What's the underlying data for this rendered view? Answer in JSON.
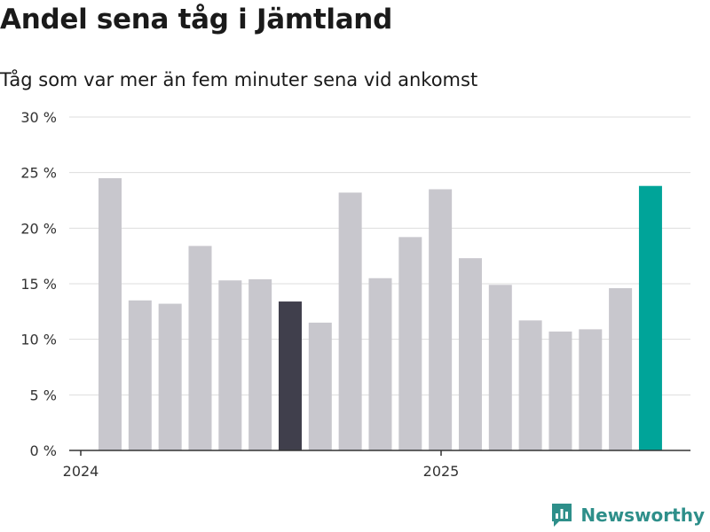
{
  "chart_data": {
    "type": "bar",
    "title": "Andel sena tåg i Jämtland",
    "subtitle": "Tåg som var mer än fem minuter sena vid ankomst",
    "xlabel": "",
    "ylabel": "",
    "ylim": [
      0,
      30
    ],
    "yticks": [
      0,
      5,
      10,
      15,
      20,
      25,
      30
    ],
    "ytick_labels": [
      "0 %",
      "5 %",
      "10 %",
      "15 %",
      "20 %",
      "25 %",
      "30 %"
    ],
    "x_tick_labels": [
      {
        "label": "2024",
        "index": 0
      },
      {
        "label": "2025",
        "index": 12
      }
    ],
    "grid": true,
    "values": [
      24.5,
      13.5,
      13.2,
      18.4,
      15.3,
      15.4,
      13.4,
      11.5,
      23.2,
      15.5,
      19.2,
      23.5,
      17.3,
      14.9,
      11.7,
      10.7,
      10.9,
      14.6,
      23.8
    ],
    "highlight_dark_index": 6,
    "highlight_accent_index": 18,
    "colors": {
      "default_bar": "#c8c7cd",
      "dark_bar": "#403f4c",
      "accent_bar": "#00a499",
      "grid": "#dddddd",
      "axis": "#333333"
    }
  },
  "branding": {
    "name": "Newsworthy",
    "icon": "newsworthy-logo-icon",
    "color": "#2e8f8a"
  }
}
